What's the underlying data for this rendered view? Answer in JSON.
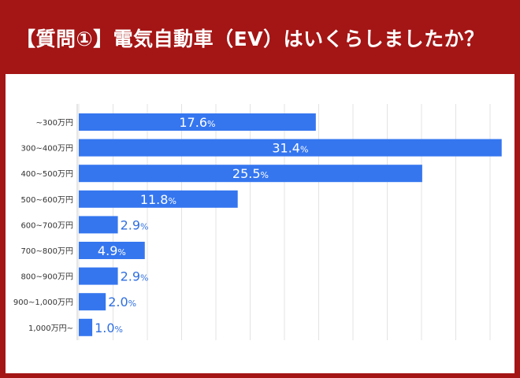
{
  "header": {
    "title": "【質問①】電気自動車（EV）はいくらしましたか？"
  },
  "colors": {
    "header_bg": "#a41515",
    "bar": "#3576ef",
    "label_inside": "#ffffff",
    "label_outside": "#2f6fe0",
    "grid": "#e3e3e3"
  },
  "chart_data": {
    "type": "bar",
    "orientation": "horizontal",
    "title": "",
    "xlabel": "",
    "ylabel": "",
    "xlim": [
      0,
      32
    ],
    "grid": true,
    "value_suffix": "%",
    "categories": [
      "~300万円",
      "300~400万円",
      "400~500万円",
      "500~600万円",
      "600~700万円",
      "700~800万円",
      "800~900万円",
      "900~1,000万円",
      "1,000万円~"
    ],
    "values": [
      17.6,
      31.4,
      25.5,
      11.8,
      2.9,
      4.9,
      2.9,
      2.0,
      1.0
    ],
    "value_labels": [
      "17.6",
      "31.4",
      "25.5",
      "11.8",
      "2.9",
      "4.9",
      "2.9",
      "2.0",
      "1.0"
    ]
  }
}
